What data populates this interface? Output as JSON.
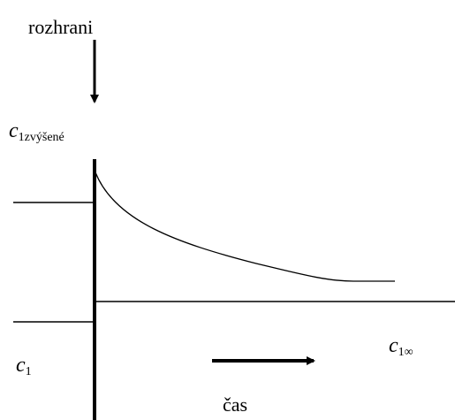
{
  "labels": {
    "interface": "rozhrani",
    "c_raised": {
      "symbol": "c",
      "subscript": "1zvýšené"
    },
    "c_initial": {
      "symbol": "c",
      "subscript": "1"
    },
    "c_infinity": {
      "symbol": "c",
      "subscript": "1∞"
    },
    "time": "čas"
  }
}
